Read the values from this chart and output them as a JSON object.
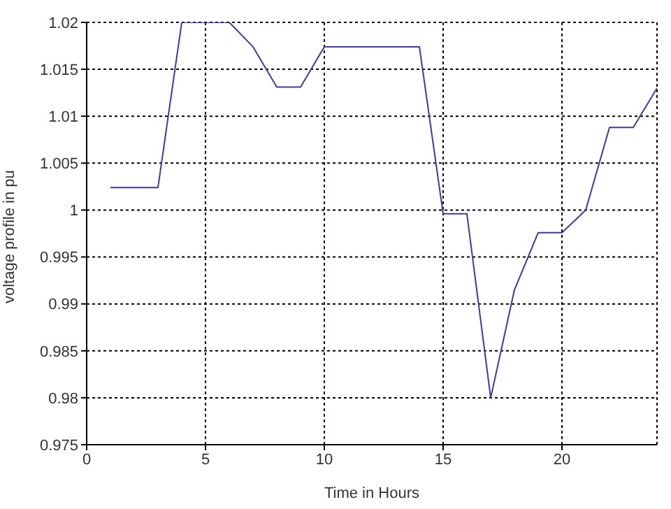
{
  "chart_data": {
    "type": "line",
    "xlabel": "Time in Hours",
    "ylabel": "voltage profile in pu",
    "x": [
      1,
      2,
      3,
      4,
      5,
      6,
      7,
      8,
      9,
      10,
      11,
      12,
      13,
      14,
      15,
      16,
      17,
      18,
      19,
      20,
      21,
      22,
      23,
      24
    ],
    "series": [
      {
        "color": "#3a3aa8",
        "values": [
          1.0024,
          1.0024,
          1.0024,
          1.02,
          1.02,
          1.02,
          1.0174,
          1.0131,
          1.0131,
          1.0174,
          1.0174,
          1.0174,
          1.0174,
          1.0174,
          0.9996,
          0.9996,
          0.98,
          0.9915,
          0.9976,
          0.9976,
          1.0,
          1.0088,
          1.0088,
          1.013
        ]
      }
    ],
    "xlim": [
      0,
      24
    ],
    "xticks": [
      0,
      5,
      10,
      15,
      20
    ],
    "ylim": [
      0.975,
      1.02
    ],
    "yticks": [
      0.975,
      0.98,
      0.985,
      0.99,
      0.995,
      1,
      1.005,
      1.01,
      1.015,
      1.02
    ],
    "grid": true,
    "marker": "none",
    "line_style": "solid"
  }
}
